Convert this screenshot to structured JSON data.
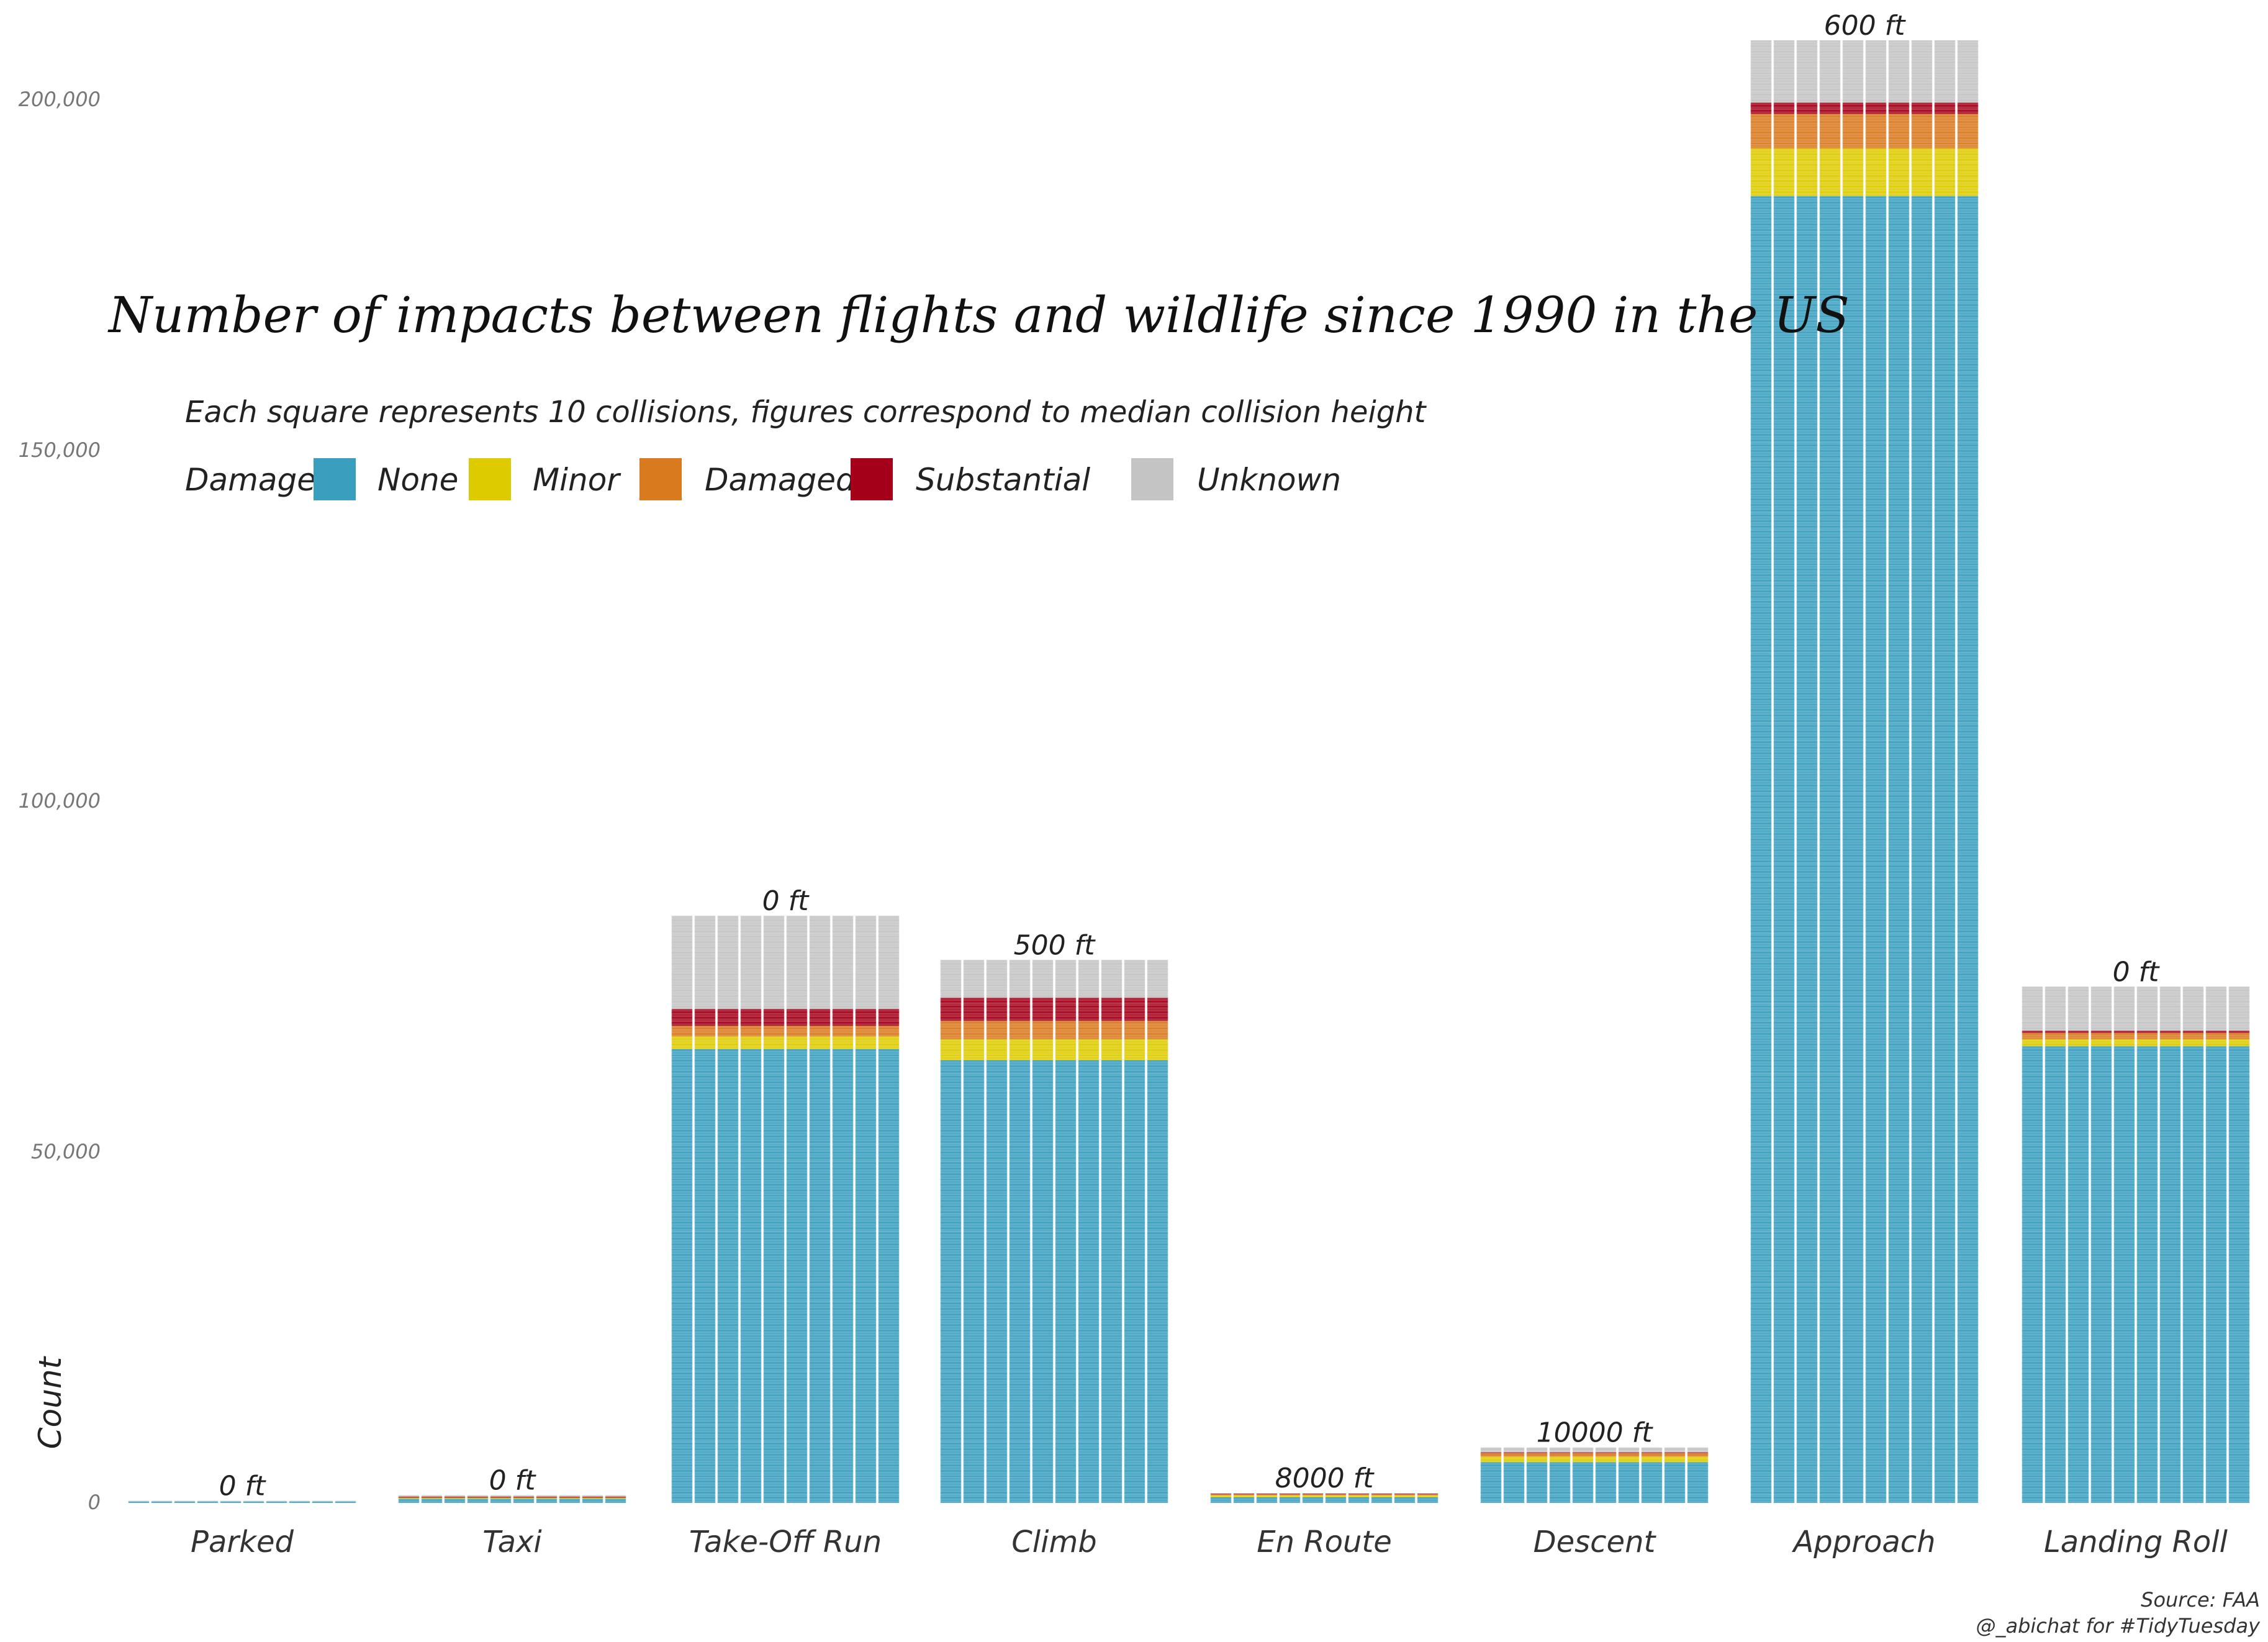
{
  "chart_data": {
    "type": "bar",
    "stacked": true,
    "title": "Number of impacts between flights and wildlife since 1990 in the US",
    "subtitle": "Each square represents 10 collisions, figures correspond to median collision height",
    "xlabel": "",
    "ylabel": "Count",
    "ylim": [
      0,
      200000
    ],
    "yticks": [
      0,
      50000,
      100000,
      150000,
      200000
    ],
    "ytick_labels": [
      "0",
      "50,000",
      "100,000",
      "150,000",
      "200,000"
    ],
    "legend": {
      "title": "Damage",
      "position": "top-left"
    },
    "categories": [
      "Parked",
      "Taxi",
      "Take-Off Run",
      "Climb",
      "En Route",
      "Descent",
      "Approach",
      "Landing Roll"
    ],
    "annotations": [
      "0 ft",
      "0 ft",
      "0 ft",
      "500 ft",
      "8000 ft",
      "10000 ft",
      "600 ft",
      "0 ft"
    ],
    "series": [
      {
        "name": "None",
        "color": "#3A9FBF",
        "values": [
          200,
          600,
          64700,
          63100,
          800,
          5800,
          186300,
          65100
        ]
      },
      {
        "name": "Minor",
        "color": "#DDCB00",
        "values": [
          0,
          100,
          1800,
          3000,
          300,
          800,
          6800,
          1000
        ]
      },
      {
        "name": "Damaged",
        "color": "#D97A1E",
        "values": [
          0,
          100,
          1500,
          2600,
          100,
          500,
          4900,
          900
        ]
      },
      {
        "name": "Substantial",
        "color": "#A5001A",
        "values": [
          0,
          100,
          2400,
          3300,
          100,
          100,
          1600,
          300
        ]
      },
      {
        "name": "Unknown",
        "color": "#C4C4C4",
        "values": [
          100,
          200,
          13300,
          5400,
          100,
          700,
          8900,
          6300
        ]
      }
    ],
    "caption": [
      "Source: FAA",
      "@_abichat for #TidyTuesday"
    ]
  }
}
